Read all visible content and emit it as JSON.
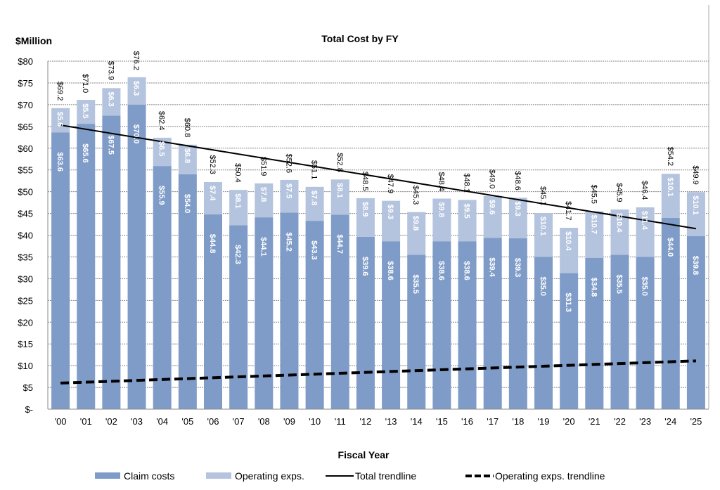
{
  "chart_data": {
    "type": "bar",
    "stacked": true,
    "title": "Total Cost by FY",
    "ylabel": "$Million",
    "xlabel": "Fiscal Year",
    "ylim": [
      0,
      80
    ],
    "yticks": [
      "$-",
      "$5",
      "$10",
      "$15",
      "$20",
      "$25",
      "$30",
      "$35",
      "$40",
      "$45",
      "$50",
      "$55",
      "$60",
      "$65",
      "$70",
      "$75",
      "$80"
    ],
    "grid": true,
    "legend_position": "bottom",
    "categories": [
      "'00",
      "'01",
      "'02",
      "'03",
      "'04",
      "'05",
      "'06",
      "'07",
      "'08",
      "'09",
      "'10",
      "'11",
      "'12",
      "'13",
      "'14",
      "'15",
      "'16",
      "'17",
      "'18",
      "'19",
      "'20",
      "'21",
      "'22",
      "'23",
      "'24",
      "'25"
    ],
    "series": [
      {
        "name": "Claim costs",
        "color": "#7f9cc8",
        "values": [
          63.6,
          65.6,
          67.5,
          70.0,
          55.9,
          54.0,
          44.8,
          42.3,
          44.1,
          45.2,
          43.3,
          44.7,
          39.6,
          38.6,
          35.5,
          38.6,
          38.6,
          39.4,
          39.3,
          35.0,
          31.3,
          34.8,
          35.5,
          35.0,
          44.0,
          39.8
        ]
      },
      {
        "name": "Operating exps.",
        "color": "#b4c3de",
        "values": [
          5.6,
          5.5,
          6.3,
          6.3,
          6.5,
          6.8,
          7.4,
          8.1,
          7.8,
          7.5,
          7.8,
          8.1,
          8.9,
          9.3,
          9.8,
          9.8,
          9.5,
          9.6,
          9.3,
          10.1,
          10.4,
          10.7,
          10.4,
          11.4,
          10.1,
          10.1
        ]
      }
    ],
    "totals": [
      69.2,
      71.0,
      73.9,
      76.2,
      62.4,
      60.8,
      52.3,
      50.4,
      51.9,
      52.6,
      51.1,
      52.8,
      48.5,
      47.9,
      45.3,
      48.4,
      48.1,
      49.0,
      48.6,
      45.1,
      41.7,
      45.5,
      45.9,
      46.4,
      54.2,
      49.9
    ],
    "trendlines": [
      {
        "name": "Total trendline",
        "style": "solid",
        "color": "#000000",
        "start": 65.3,
        "end": 41.5
      },
      {
        "name": "Operating exps. trendline",
        "style": "dashed",
        "color": "#000000",
        "start": 6.0,
        "end": 11.1
      }
    ]
  }
}
